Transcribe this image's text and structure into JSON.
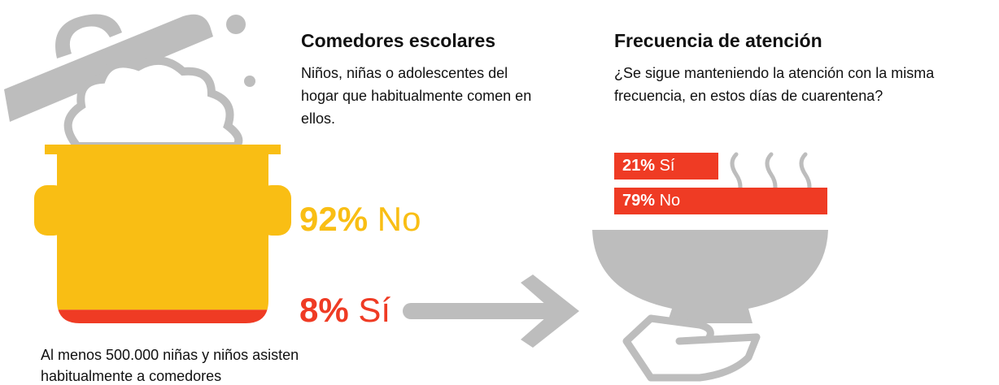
{
  "left": {
    "title": "Comedores escolares",
    "subtitle": "Niños, niñas o adolescentes del hogar que habitualmente comen en ellos.",
    "items": [
      {
        "value": 92,
        "value_label": "92%",
        "label": "No",
        "color": "#f9be14"
      },
      {
        "value": 8,
        "value_label": "8%",
        "label": "Sí",
        "color": "#ef3b24"
      }
    ],
    "note": "Al menos 500.000 niñas y niños asisten habitualmente a comedores"
  },
  "right": {
    "title": "Frecuencia de atención",
    "subtitle": "¿Se sigue manteniendo la atención con la misma frecuencia, en estos días de cuarentena?",
    "color": "#ef3b24",
    "items": [
      {
        "value": 21,
        "value_label": "21%",
        "label": "Sí"
      },
      {
        "value": 79,
        "value_label": "79%",
        "label": "No"
      }
    ]
  }
}
